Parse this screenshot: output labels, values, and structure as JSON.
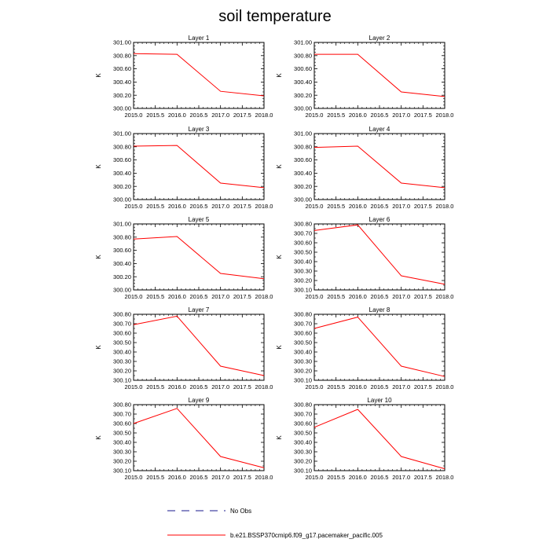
{
  "title": "soil temperature",
  "legend": {
    "obs_label": "No Obs",
    "obs_color": "#1a1a8c",
    "model_label": "b.e21.BSSP370cmip6.f09_g17.pacemaker_pacific.005",
    "model_color": "#ff0000"
  },
  "chart_data": [
    {
      "type": "line",
      "title": "Layer 1",
      "xlabel": "",
      "ylabel": "K",
      "x": [
        2015.0,
        2016.0,
        2017.0,
        2018.0
      ],
      "values": [
        300.83,
        300.82,
        300.26,
        300.19
      ],
      "xlim": [
        2015.0,
        2018.0
      ],
      "ylim": [
        300.0,
        301.0
      ],
      "xticks": [
        2015.0,
        2015.5,
        2016.0,
        2016.5,
        2017.0,
        2017.5,
        2018.0
      ],
      "yticks": [
        300.0,
        300.2,
        300.4,
        300.6,
        300.8,
        301.0
      ]
    },
    {
      "type": "line",
      "title": "Layer 2",
      "xlabel": "",
      "ylabel": "K",
      "x": [
        2015.0,
        2016.0,
        2017.0,
        2018.0
      ],
      "values": [
        300.82,
        300.82,
        300.25,
        300.18
      ],
      "xlim": [
        2015.0,
        2018.0
      ],
      "ylim": [
        300.0,
        301.0
      ],
      "xticks": [
        2015.0,
        2015.5,
        2016.0,
        2016.5,
        2017.0,
        2017.5,
        2018.0
      ],
      "yticks": [
        300.0,
        300.2,
        300.4,
        300.6,
        300.8,
        301.0
      ]
    },
    {
      "type": "line",
      "title": "Layer 3",
      "xlabel": "",
      "ylabel": "K",
      "x": [
        2015.0,
        2016.0,
        2017.0,
        2018.0
      ],
      "values": [
        300.81,
        300.82,
        300.25,
        300.18
      ],
      "xlim": [
        2015.0,
        2018.0
      ],
      "ylim": [
        300.0,
        301.0
      ],
      "xticks": [
        2015.0,
        2015.5,
        2016.0,
        2016.5,
        2017.0,
        2017.5,
        2018.0
      ],
      "yticks": [
        300.0,
        300.2,
        300.4,
        300.6,
        300.8,
        301.0
      ]
    },
    {
      "type": "line",
      "title": "Layer 4",
      "xlabel": "",
      "ylabel": "K",
      "x": [
        2015.0,
        2016.0,
        2017.0,
        2018.0
      ],
      "values": [
        300.79,
        300.81,
        300.25,
        300.18
      ],
      "xlim": [
        2015.0,
        2018.0
      ],
      "ylim": [
        300.0,
        301.0
      ],
      "xticks": [
        2015.0,
        2015.5,
        2016.0,
        2016.5,
        2017.0,
        2017.5,
        2018.0
      ],
      "yticks": [
        300.0,
        300.2,
        300.4,
        300.6,
        300.8,
        301.0
      ]
    },
    {
      "type": "line",
      "title": "Layer 5",
      "xlabel": "",
      "ylabel": "K",
      "x": [
        2015.0,
        2016.0,
        2017.0,
        2018.0
      ],
      "values": [
        300.77,
        300.81,
        300.25,
        300.17
      ],
      "xlim": [
        2015.0,
        2018.0
      ],
      "ylim": [
        300.0,
        301.0
      ],
      "xticks": [
        2015.0,
        2015.5,
        2016.0,
        2016.5,
        2017.0,
        2017.5,
        2018.0
      ],
      "yticks": [
        300.0,
        300.2,
        300.4,
        300.6,
        300.8,
        301.0
      ]
    },
    {
      "type": "line",
      "title": "Layer 6",
      "xlabel": "",
      "ylabel": "K",
      "x": [
        2015.0,
        2016.0,
        2017.0,
        2018.0
      ],
      "values": [
        300.73,
        300.79,
        300.25,
        300.16
      ],
      "xlim": [
        2015.0,
        2018.0
      ],
      "ylim": [
        300.1,
        300.8
      ],
      "xticks": [
        2015.0,
        2015.5,
        2016.0,
        2016.5,
        2017.0,
        2017.5,
        2018.0
      ],
      "yticks": [
        300.1,
        300.2,
        300.3,
        300.4,
        300.5,
        300.6,
        300.7,
        300.8
      ]
    },
    {
      "type": "line",
      "title": "Layer 7",
      "xlabel": "",
      "ylabel": "K",
      "x": [
        2015.0,
        2016.0,
        2017.0,
        2018.0
      ],
      "values": [
        300.69,
        300.78,
        300.25,
        300.15
      ],
      "xlim": [
        2015.0,
        2018.0
      ],
      "ylim": [
        300.1,
        300.8
      ],
      "xticks": [
        2015.0,
        2015.5,
        2016.0,
        2016.5,
        2017.0,
        2017.5,
        2018.0
      ],
      "yticks": [
        300.1,
        300.2,
        300.3,
        300.4,
        300.5,
        300.6,
        300.7,
        300.8
      ]
    },
    {
      "type": "line",
      "title": "Layer 8",
      "xlabel": "",
      "ylabel": "K",
      "x": [
        2015.0,
        2016.0,
        2017.0,
        2018.0
      ],
      "values": [
        300.65,
        300.77,
        300.25,
        300.14
      ],
      "xlim": [
        2015.0,
        2018.0
      ],
      "ylim": [
        300.1,
        300.8
      ],
      "xticks": [
        2015.0,
        2015.5,
        2016.0,
        2016.5,
        2017.0,
        2017.5,
        2018.0
      ],
      "yticks": [
        300.1,
        300.2,
        300.3,
        300.4,
        300.5,
        300.6,
        300.7,
        300.8
      ]
    },
    {
      "type": "line",
      "title": "Layer 9",
      "xlabel": "",
      "ylabel": "K",
      "x": [
        2015.0,
        2016.0,
        2017.0,
        2018.0
      ],
      "values": [
        300.6,
        300.76,
        300.25,
        300.13
      ],
      "xlim": [
        2015.0,
        2018.0
      ],
      "ylim": [
        300.1,
        300.8
      ],
      "xticks": [
        2015.0,
        2015.5,
        2016.0,
        2016.5,
        2017.0,
        2017.5,
        2018.0
      ],
      "yticks": [
        300.1,
        300.2,
        300.3,
        300.4,
        300.5,
        300.6,
        300.7,
        300.8
      ]
    },
    {
      "type": "line",
      "title": "Layer 10",
      "xlabel": "",
      "ylabel": "K",
      "x": [
        2015.0,
        2016.0,
        2017.0,
        2018.0
      ],
      "values": [
        300.56,
        300.75,
        300.25,
        300.12
      ],
      "xlim": [
        2015.0,
        2018.0
      ],
      "ylim": [
        300.1,
        300.8
      ],
      "xticks": [
        2015.0,
        2015.5,
        2016.0,
        2016.5,
        2017.0,
        2017.5,
        2018.0
      ],
      "yticks": [
        300.1,
        300.2,
        300.3,
        300.4,
        300.5,
        300.6,
        300.7,
        300.8
      ]
    }
  ]
}
